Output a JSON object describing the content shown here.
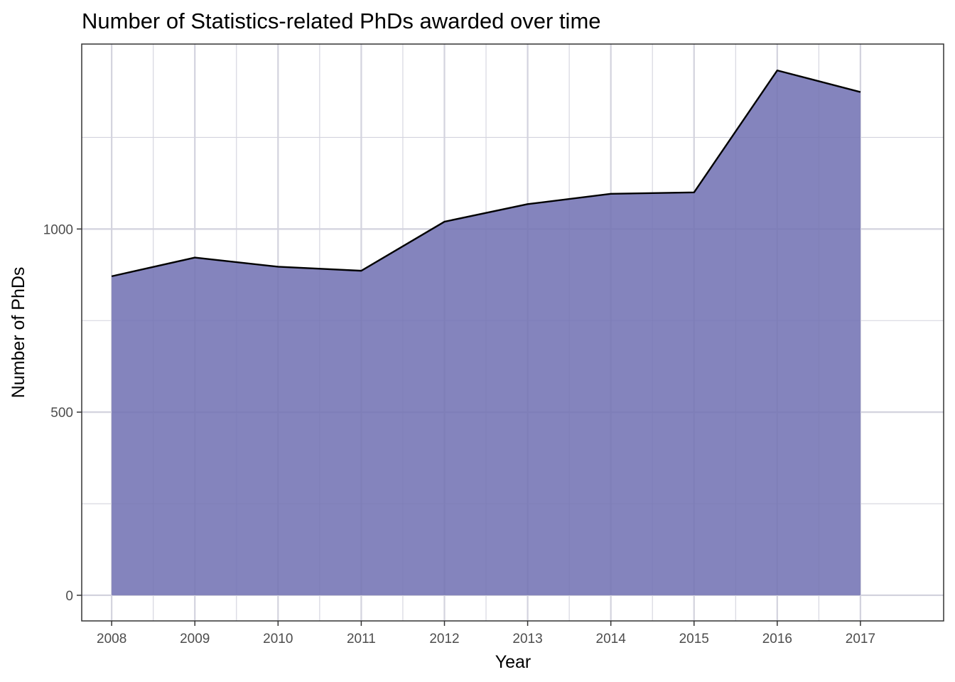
{
  "chart_data": {
    "type": "area",
    "title": "Number of Statistics-related PhDs awarded over time",
    "xlabel": "Year",
    "ylabel": "Number of PhDs",
    "x": [
      2008,
      2009,
      2010,
      2011,
      2012,
      2013,
      2014,
      2015,
      2016,
      2017
    ],
    "values": [
      871,
      922,
      897,
      886,
      1020,
      1068,
      1096,
      1100,
      1433,
      1374
    ],
    "xlim": [
      2007.64,
      2018.0
    ],
    "ylim": [
      -70,
      1505
    ],
    "x_ticks": [
      2008,
      2009,
      2010,
      2011,
      2012,
      2013,
      2014,
      2015,
      2016,
      2017
    ],
    "y_ticks": [
      0,
      500,
      1000
    ],
    "y_minor_ticks": [
      250,
      750,
      1250
    ],
    "grid": true,
    "fill_color": "#8080bb",
    "line_color": "#000000"
  }
}
